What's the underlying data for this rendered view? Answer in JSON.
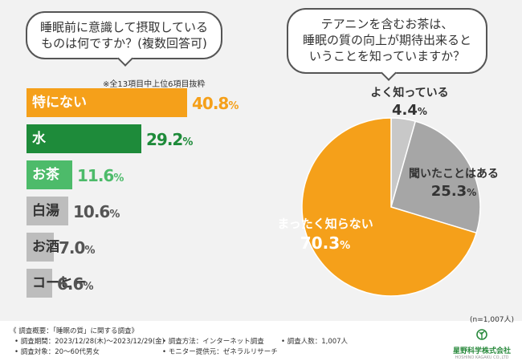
{
  "left_panel": {
    "question_line1": "睡眠前に意識して摂取している",
    "question_line2": "ものは何ですか？(複数回答可)",
    "note": "※全13項目中上位6項目抜粋"
  },
  "right_panel": {
    "question_line1": "テアニンを含むお茶は、",
    "question_line2": "睡眠の質の向上が期待出来ると",
    "question_line3": "いうことを知っていますか？",
    "sample": "(n=1,007人)"
  },
  "chart_data": [
    {
      "type": "bar",
      "orientation": "horizontal",
      "title": "睡眠前に意識して摂取しているものは何ですか？(複数回答可)",
      "categories": [
        "特にない",
        "水",
        "お茶",
        "白湯",
        "お酒",
        "コーヒー"
      ],
      "values": [
        40.8,
        29.2,
        11.6,
        10.6,
        7.0,
        6.6
      ],
      "value_labels": [
        "40.8",
        "29.2",
        "11.6",
        "10.6",
        "7.0",
        "6.6"
      ],
      "unit": "%",
      "colors": [
        "#f5a01a",
        "#1e8b3a",
        "#4dbb6a",
        "#bdbdbd",
        "#bdbdbd",
        "#bdbdbd"
      ],
      "label_colors": [
        "#ffffff",
        "#ffffff",
        "#ffffff",
        "#333333",
        "#333333",
        "#333333"
      ],
      "value_colors": [
        "#f5a01a",
        "#1e8b3a",
        "#4dbb6a",
        "#555555",
        "#555555",
        "#555555"
      ]
    },
    {
      "type": "pie",
      "title": "テアニンを含むお茶は、睡眠の質の向上が期待出来るということを知っていますか？",
      "slices": [
        {
          "label": "よく知っている",
          "value": 4.4,
          "value_label": "4.4",
          "color": "#c8c8c8"
        },
        {
          "label": "聞いたことはある",
          "value": 25.3,
          "value_label": "25.3",
          "color": "#a6a6a6"
        },
        {
          "label": "まったく知らない",
          "value": 70.3,
          "value_label": "70.3",
          "color": "#f5a01a"
        }
      ],
      "unit": "%"
    }
  ],
  "footer": {
    "overview": "《 調査概要：「睡眠の質」に関する調査》",
    "period": "• 調査期間：2023/12/28(木)〜2023/12/29(金)",
    "method": "• 調査方法：インターネット調査",
    "count": "• 調査人数：1,007人",
    "target": "• 調査対象：20〜60代男女",
    "provider": "• モニター提供元：ゼネラルリサーチ"
  },
  "logo": {
    "name": "星野科学株式会社",
    "sub": "HOSHINO KAGAKU CO.,LTD"
  }
}
